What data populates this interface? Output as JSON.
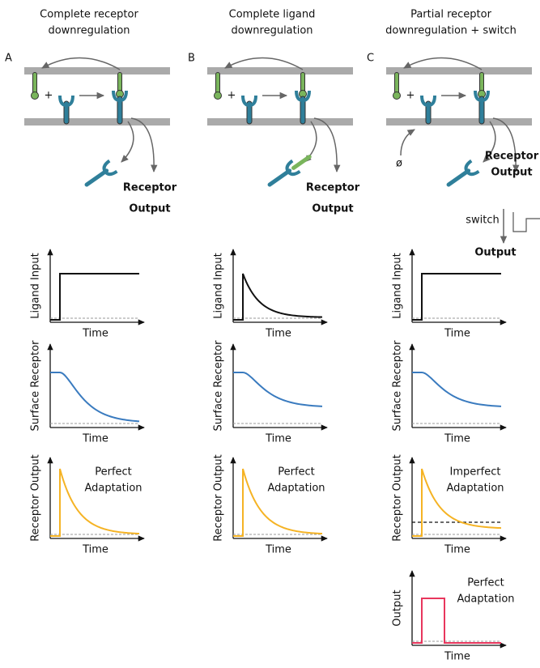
{
  "columns": [
    {
      "letter": "A",
      "title": [
        "Complete receptor",
        "downregulation"
      ],
      "output_label": [
        "Receptor",
        "Output"
      ],
      "plots": [
        {
          "y_label": "Ligand Input",
          "x_label": "Time"
        },
        {
          "y_label": "Surface Receptor",
          "x_label": "Time"
        },
        {
          "y_label": "Receptor Output",
          "x_label": "Time",
          "note": [
            "Perfect",
            "Adaptation"
          ]
        }
      ]
    },
    {
      "letter": "B",
      "title": [
        "Complete ligand",
        "downregulation"
      ],
      "output_label": [
        "Receptor",
        "Output"
      ],
      "plots": [
        {
          "y_label": "Ligand Input",
          "x_label": "Time"
        },
        {
          "y_label": "Surface Receptor",
          "x_label": "Time"
        },
        {
          "y_label": "Receptor Output",
          "x_label": "Time",
          "note": [
            "Perfect",
            "Adaptation"
          ]
        }
      ]
    },
    {
      "letter": "C",
      "title": [
        "Partial receptor",
        "downregulation + switch"
      ],
      "output_label": [
        "Receptor",
        "Output"
      ],
      "degradation": "ø",
      "switch": "switch",
      "final_output": "Output",
      "plots": [
        {
          "y_label": "Ligand Input",
          "x_label": "Time"
        },
        {
          "y_label": "Surface Receptor",
          "x_label": "Time"
        },
        {
          "y_label": "Receptor Output",
          "x_label": "Time",
          "note": [
            "Imperfect",
            "Adaptation"
          ]
        },
        {
          "y_label": "Output",
          "x_label": "Time",
          "note": [
            "Perfect",
            "Adaptation"
          ]
        }
      ]
    }
  ]
}
